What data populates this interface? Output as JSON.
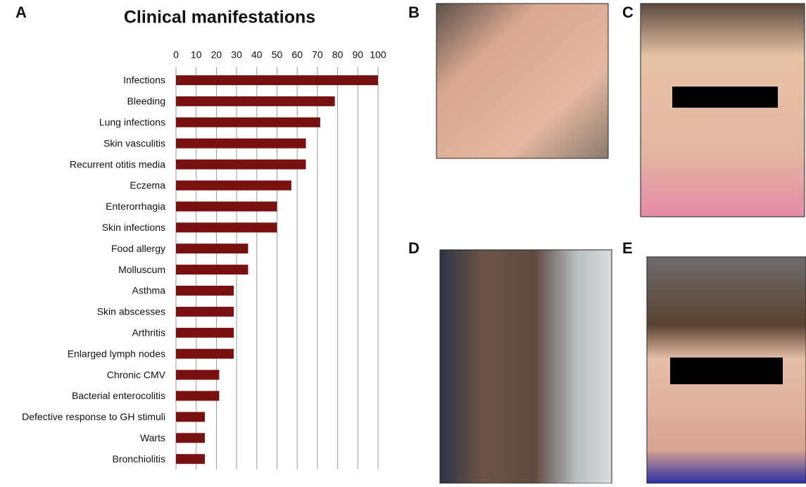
{
  "panel_labels": [
    "A",
    "B",
    "C",
    "D",
    "E"
  ],
  "chart_data": {
    "type": "bar",
    "orientation": "horizontal",
    "title": "Clinical manifestations",
    "categories": [
      "Infections",
      "Bleeding",
      "Lung infections",
      "Skin vasculitis",
      "Recurrent otitis media",
      "Eczema",
      "Enterorrhagia",
      "Skin infections",
      "Food allergy",
      "Molluscum",
      "Asthma",
      "Skin abscesses",
      "Arthritis",
      "Enlarged lymph nodes",
      "Chronic CMV",
      "Bacterial enterocolitis",
      "Defective response to GH stimuli",
      "Warts",
      "Bronchiolitis"
    ],
    "values": [
      100,
      78.6,
      71.4,
      64.3,
      64.3,
      57.1,
      50,
      50,
      35.7,
      35.7,
      28.6,
      28.6,
      28.6,
      28.6,
      21.4,
      21.4,
      14.3,
      14.3,
      14.3
    ],
    "color": "#7a1111",
    "xlim": [
      0,
      100
    ],
    "xticks": [
      0,
      10,
      20,
      30,
      40,
      50,
      60,
      70,
      80,
      90,
      100
    ],
    "grid": true
  }
}
